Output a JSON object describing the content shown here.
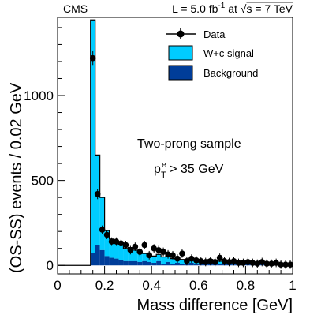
{
  "header": {
    "experiment": "CMS",
    "lumi_prefix": "L = 5.0 fb",
    "lumi_exp": "-1",
    "energy_prefix": " at ",
    "sqrt_symbol": "√",
    "energy_suffix": "s = 7 TeV"
  },
  "annotations": {
    "sample": "Two-prong sample",
    "cut_p": "p",
    "cut_sup": "e",
    "cut_sub": "T",
    "cut_rest": " > 35 GeV"
  },
  "colors": {
    "signal": "#00ccff",
    "background": "#003d99",
    "data": "#000000",
    "frame": "#000000"
  },
  "chart_data": {
    "type": "bar",
    "title": "",
    "xlabel": "Mass difference [GeV]",
    "ylabel": "(OS-SS) events / 0.02 GeV",
    "xlim": [
      0,
      1
    ],
    "ylim": [
      -50,
      1460
    ],
    "x_ticks": [
      0,
      0.2,
      0.4,
      0.6,
      0.8,
      1
    ],
    "x_tick_labels": [
      "0",
      "0.2",
      "0.4",
      "0.6",
      "0.8",
      "1"
    ],
    "y_ticks": [
      0,
      500,
      1000
    ],
    "y_tick_labels": [
      "0",
      "500",
      "1000"
    ],
    "grid": false,
    "legend_position": "top-right",
    "bin_width": 0.02,
    "bin_edges": [
      0.14,
      0.16,
      0.18,
      0.2,
      0.22,
      0.24,
      0.26,
      0.28,
      0.3,
      0.32,
      0.34,
      0.36,
      0.38,
      0.4,
      0.42,
      0.44,
      0.46,
      0.48,
      0.5,
      0.52,
      0.54,
      0.56,
      0.58,
      0.6,
      0.62,
      0.64,
      0.66,
      0.68,
      0.7,
      0.72,
      0.74,
      0.76,
      0.78,
      0.8,
      0.82,
      0.84,
      0.86,
      0.88,
      0.9,
      0.92,
      0.94,
      0.96,
      0.98,
      1.0
    ],
    "series": [
      {
        "name": "W+c signal",
        "kind": "stacked-histogram",
        "values": [
          1370,
          530,
          310,
          150,
          110,
          100,
          95,
          75,
          80,
          65,
          60,
          45,
          45,
          40,
          40,
          40,
          35,
          30,
          30,
          25,
          25,
          25,
          25,
          20,
          20,
          20,
          20,
          15,
          15,
          15,
          15,
          10,
          10,
          10,
          10,
          10,
          10,
          5,
          5,
          5,
          5,
          5,
          5
        ]
      },
      {
        "name": "Background",
        "kind": "stacked-histogram",
        "values": [
          75,
          120,
          90,
          55,
          45,
          40,
          30,
          25,
          25,
          25,
          20,
          25,
          20,
          15,
          25,
          10,
          20,
          10,
          15,
          10,
          10,
          15,
          10,
          10,
          10,
          15,
          10,
          10,
          10,
          10,
          5,
          5,
          10,
          15,
          10,
          5,
          5,
          5,
          5,
          5,
          5,
          5,
          5
        ]
      },
      {
        "name": "Data",
        "kind": "points-with-errors",
        "x": [
          0.15,
          0.17,
          0.19,
          0.21,
          0.23,
          0.25,
          0.27,
          0.29,
          0.31,
          0.33,
          0.35,
          0.37,
          0.39,
          0.41,
          0.43,
          0.45,
          0.47,
          0.49,
          0.51,
          0.53,
          0.55,
          0.57,
          0.59,
          0.61,
          0.63,
          0.65,
          0.67,
          0.69,
          0.71,
          0.73,
          0.75,
          0.77,
          0.79,
          0.81,
          0.83,
          0.85,
          0.87,
          0.89,
          0.91,
          0.93,
          0.95,
          0.97,
          0.99
        ],
        "y": [
          1220,
          420,
          210,
          180,
          140,
          140,
          130,
          120,
          90,
          110,
          80,
          120,
          60,
          100,
          90,
          80,
          65,
          60,
          40,
          70,
          25,
          40,
          30,
          25,
          20,
          25,
          20,
          45,
          25,
          20,
          25,
          15,
          15,
          20,
          15,
          10,
          20,
          10,
          10,
          15,
          5,
          5,
          5
        ],
        "yerr": [
          40,
          30,
          25,
          25,
          25,
          25,
          25,
          25,
          25,
          25,
          25,
          25,
          25,
          25,
          25,
          25,
          25,
          25,
          25,
          25,
          25,
          25,
          25,
          25,
          25,
          25,
          25,
          25,
          25,
          25,
          25,
          25,
          25,
          25,
          25,
          25,
          25,
          25,
          25,
          25,
          25,
          25,
          25
        ]
      }
    ]
  }
}
